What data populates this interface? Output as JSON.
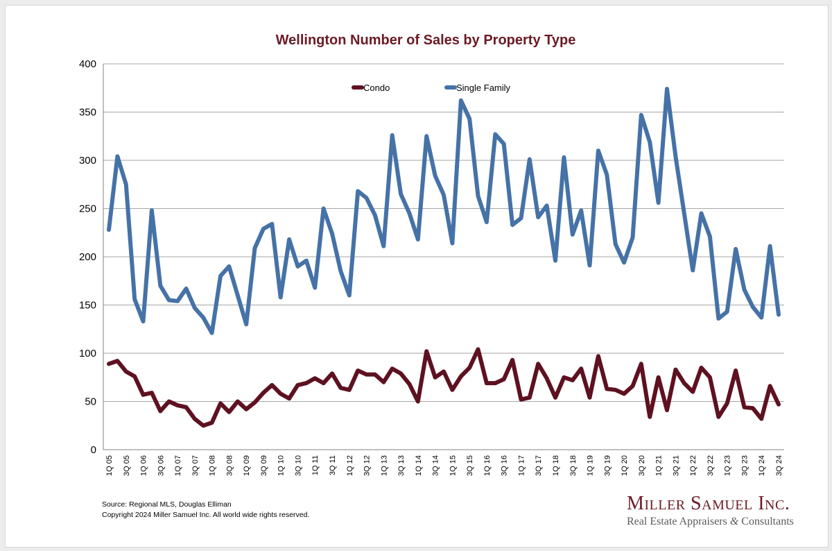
{
  "colors": {
    "title": "#6b1a25",
    "condo": "#5e1120",
    "single_family": "#4572a7",
    "grid": "#a6a6a6",
    "logo_name": "#6b1a25"
  },
  "footer": {
    "source": "Source: Regional MLS, Douglas Elliman",
    "copyright": "Copyright 2024 Miller Samuel Inc.  All world wide rights reserved."
  },
  "logo": {
    "name": "Miller Samuel Inc.",
    "tagline_left": "Real Estate Appraisers",
    "ampersand": "&",
    "tagline_right": "Consultants"
  },
  "chart_data": {
    "type": "line",
    "title": "Wellington Number of Sales by Property Type",
    "xlabel": "",
    "ylabel": "",
    "ylim": [
      0,
      400
    ],
    "yticks": [
      0,
      50,
      100,
      150,
      200,
      250,
      300,
      350,
      400
    ],
    "grid": "horizontal",
    "legend_position": "top-center",
    "x": [
      "1Q 05",
      "2Q 05",
      "3Q 05",
      "4Q 05",
      "1Q 06",
      "2Q 06",
      "3Q 06",
      "4Q 06",
      "1Q 07",
      "2Q 07",
      "3Q 07",
      "4Q 07",
      "1Q 08",
      "2Q 08",
      "3Q 08",
      "4Q 08",
      "1Q 09",
      "2Q 09",
      "3Q 09",
      "4Q 09",
      "1Q 10",
      "2Q 10",
      "3Q 10",
      "4Q 10",
      "1Q 11",
      "2Q 11",
      "3Q 11",
      "4Q 11",
      "1Q 12",
      "2Q 12",
      "3Q 12",
      "4Q 12",
      "1Q 13",
      "2Q 13",
      "3Q 13",
      "4Q 13",
      "1Q 14",
      "2Q 14",
      "3Q 14",
      "4Q 14",
      "1Q 15",
      "2Q 15",
      "3Q 15",
      "4Q 15",
      "1Q 16",
      "2Q 16",
      "3Q 16",
      "4Q 16",
      "1Q 17",
      "2Q 17",
      "3Q 17",
      "4Q 17",
      "1Q 18",
      "2Q 18",
      "3Q 18",
      "4Q 18",
      "1Q 19",
      "2Q 19",
      "3Q 19",
      "4Q 19",
      "1Q 20",
      "2Q 20",
      "3Q 20",
      "4Q 20",
      "1Q 21",
      "2Q 21",
      "3Q 21",
      "4Q 21",
      "1Q 22",
      "2Q 22",
      "3Q 22",
      "4Q 22",
      "1Q 23",
      "2Q 23",
      "3Q 23",
      "4Q 23",
      "1Q 24",
      "2Q 24",
      "3Q 24"
    ],
    "xtick_labels": [
      "1Q 05",
      "3Q 05",
      "1Q 06",
      "3Q 06",
      "1Q 07",
      "3Q 07",
      "1Q 08",
      "3Q 08",
      "1Q 09",
      "3Q 09",
      "1Q 10",
      "3Q 10",
      "1Q 11",
      "3Q 11",
      "1Q 12",
      "3Q 12",
      "1Q 13",
      "3Q 13",
      "1Q 14",
      "3Q 14",
      "1Q 15",
      "3Q 15",
      "1Q 16",
      "3Q 16",
      "1Q 17",
      "3Q 17",
      "1Q 18",
      "3Q 18",
      "1Q 19",
      "3Q 19",
      "1Q 20",
      "3Q 20",
      "1Q 21",
      "3Q 21",
      "1Q 22",
      "3Q 22",
      "1Q 23",
      "3Q 23",
      "1Q 24",
      "3Q 24"
    ],
    "series": [
      {
        "name": "Condo",
        "values": [
          89,
          92,
          81,
          76,
          57,
          59,
          40,
          50,
          46,
          44,
          32,
          25,
          28,
          48,
          39,
          50,
          42,
          49,
          59,
          67,
          58,
          53,
          67,
          69,
          74,
          69,
          79,
          64,
          62,
          82,
          78,
          78,
          70,
          84,
          79,
          68,
          50,
          102,
          75,
          81,
          62,
          76,
          85,
          104,
          69,
          69,
          73,
          93,
          52,
          54,
          89,
          74,
          54,
          75,
          72,
          84,
          54,
          97,
          63,
          62,
          58,
          66,
          89,
          34,
          75,
          41,
          83,
          69,
          60,
          85,
          75,
          34,
          48,
          82,
          44,
          43,
          32,
          66,
          47
        ]
      },
      {
        "name": "Single Family",
        "values": [
          228,
          304,
          275,
          156,
          133,
          248,
          170,
          155,
          154,
          167,
          147,
          137,
          121,
          180,
          190,
          160,
          130,
          209,
          229,
          234,
          158,
          218,
          190,
          196,
          168,
          250,
          224,
          185,
          160,
          268,
          261,
          243,
          211,
          326,
          265,
          245,
          218,
          325,
          284,
          264,
          214,
          362,
          343,
          263,
          236,
          327,
          317,
          233,
          240,
          301,
          241,
          253,
          196,
          303,
          223,
          248,
          191,
          310,
          285,
          213,
          194,
          220,
          347,
          319,
          256,
          374,
          304,
          245,
          186,
          245,
          221,
          136,
          143,
          208,
          166,
          148,
          137,
          211,
          140
        ]
      }
    ]
  }
}
